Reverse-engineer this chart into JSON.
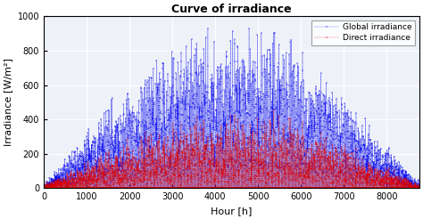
{
  "title": "Curve of irradiance",
  "xlabel": "Hour [h]",
  "ylabel": "Irradiance [W/m²]",
  "xlim": [
    0,
    8760
  ],
  "ylim": [
    0,
    1000
  ],
  "xticks": [
    0,
    1000,
    2000,
    3000,
    4000,
    5000,
    6000,
    7000,
    8000
  ],
  "yticks": [
    0,
    200,
    400,
    600,
    800,
    1000
  ],
  "global_color": "#0000EE",
  "direct_color": "#DD0000",
  "legend_labels": [
    "Global irradiance",
    "Direct irradiance"
  ],
  "plot_bg_color": "#EEF2F8",
  "fig_bg_color": "#FFFFFF",
  "grid_color": "#FFFFFF",
  "n_points": 8760,
  "seed": 42
}
